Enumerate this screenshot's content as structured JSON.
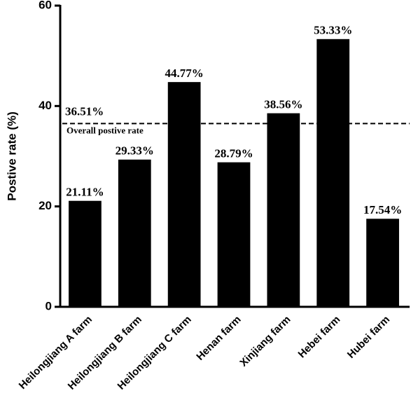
{
  "chart_data": {
    "type": "bar",
    "ylabel": "Postive rate (%)",
    "categories": [
      "Heilongjiang A farm",
      "Heilongjiang B farm",
      "Heilongjiang C farm",
      "Henan farm",
      "Xinjiang farm",
      "Hebei farm",
      "Hubei farm"
    ],
    "values": [
      21.11,
      29.33,
      44.77,
      28.79,
      38.56,
      53.33,
      17.54
    ],
    "value_labels": [
      "21.11%",
      "29.33%",
      "44.77%",
      "28.79%",
      "38.56%",
      "53.33%",
      "17.54%"
    ],
    "color": "#000000",
    "ylim": [
      0,
      60
    ],
    "yticks": [
      0,
      20,
      40,
      60
    ],
    "grid": false,
    "reference_line": {
      "value": 36.51,
      "value_label": "36.51%",
      "label": "Overall postive rate"
    }
  }
}
